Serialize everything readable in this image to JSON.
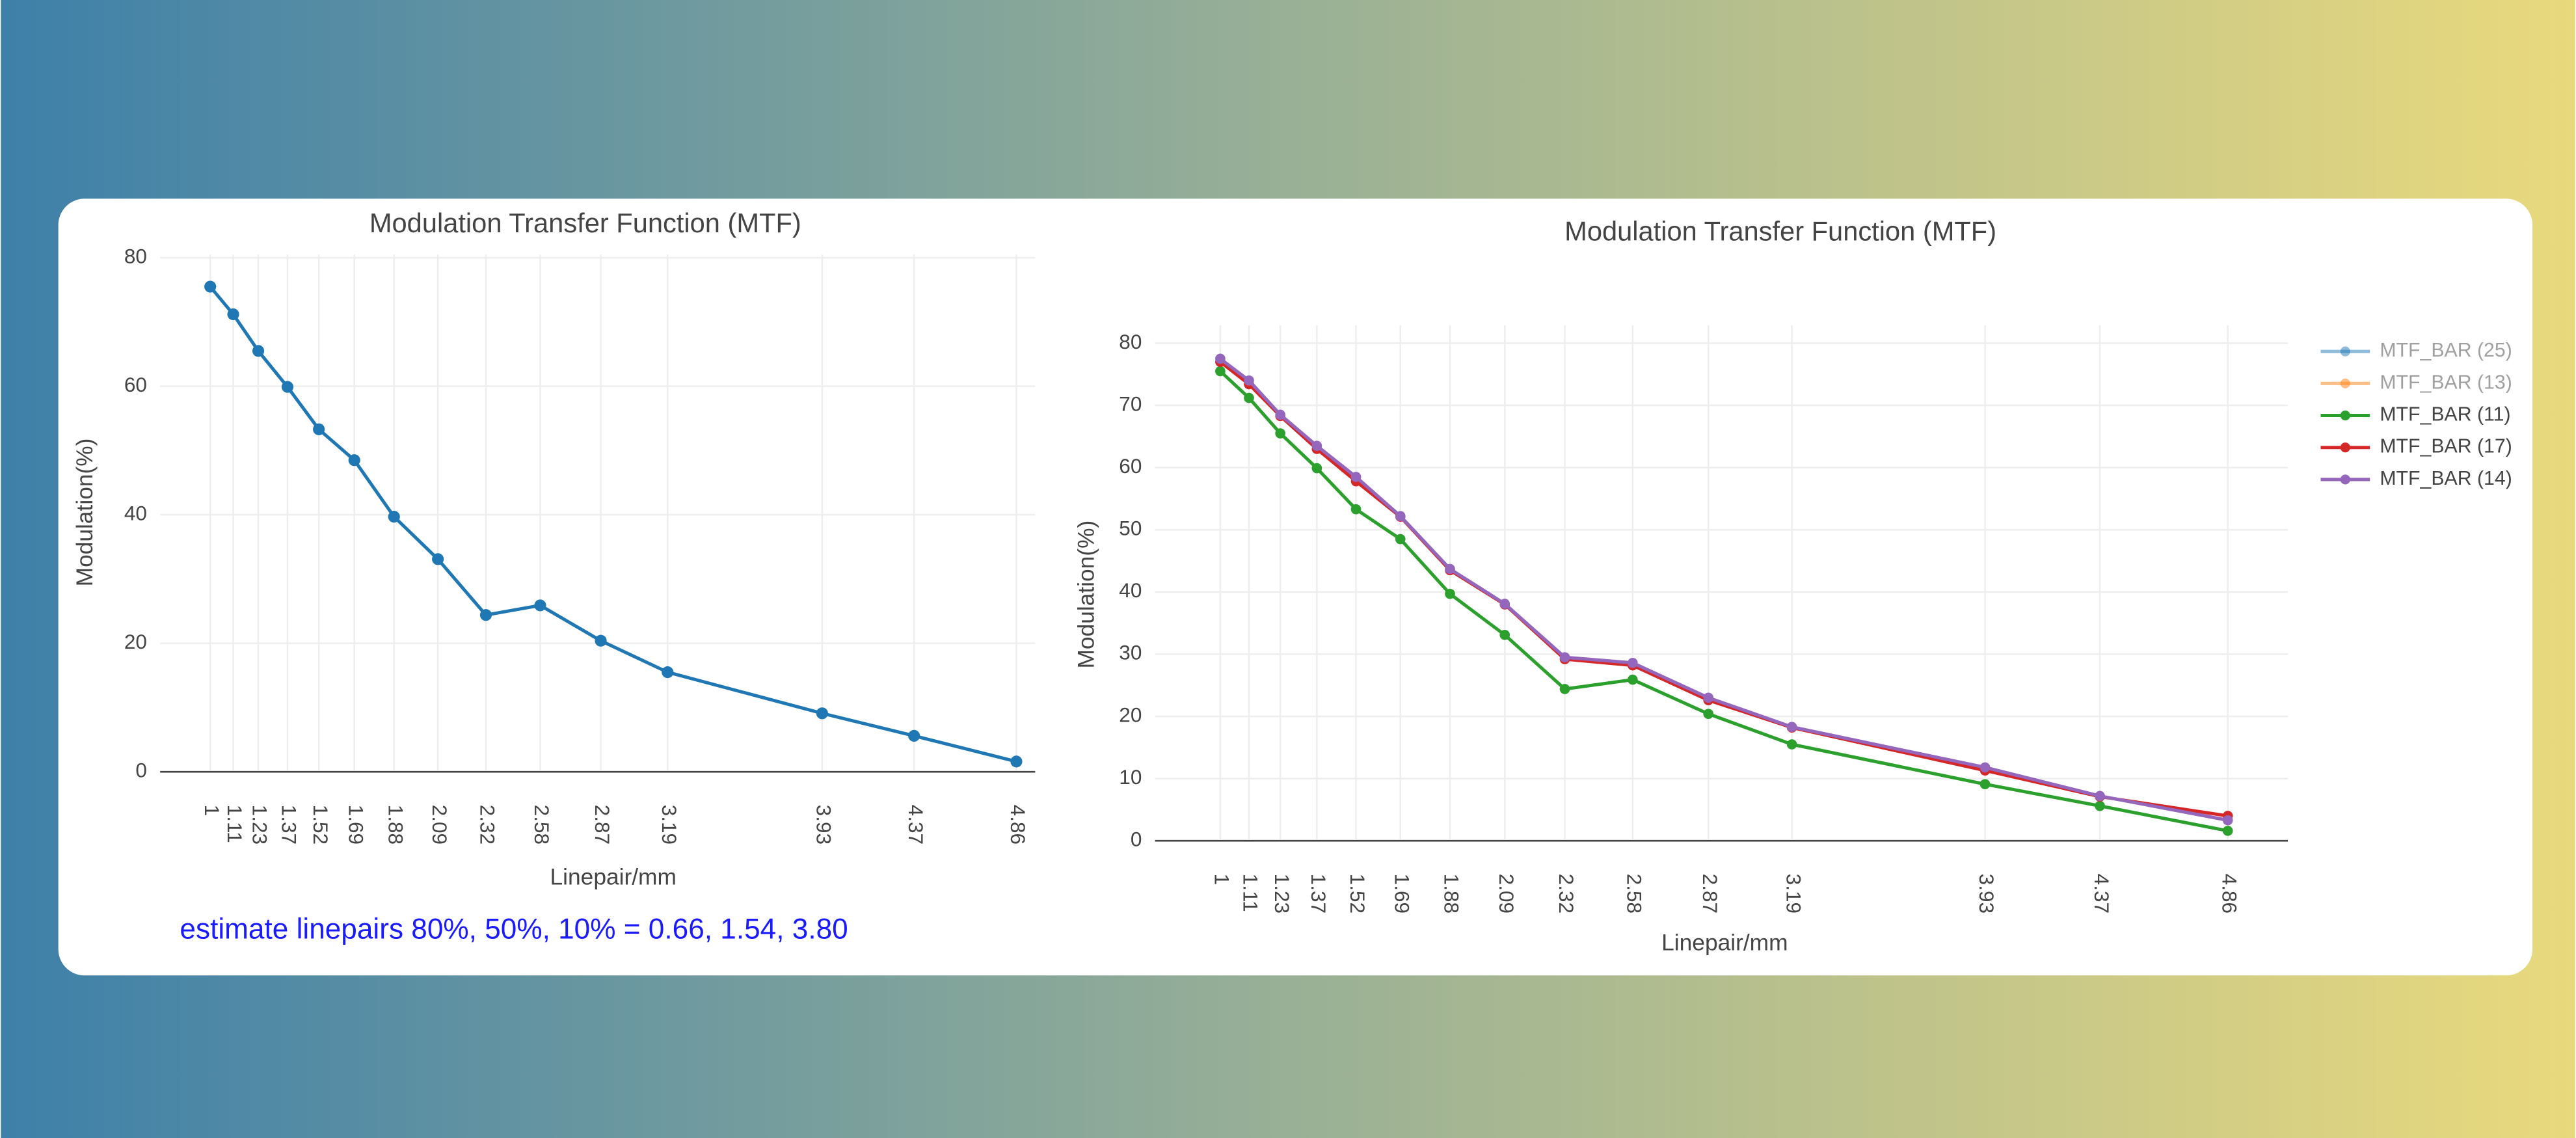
{
  "chart_data": [
    {
      "type": "line",
      "title": "Modulation Transfer Function (MTF)",
      "x_label": "Linepair/mm",
      "y_label": "Modulation(%)",
      "annotation": "estimate linepairs 80%, 50%, 10% = 0.66, 1.54, 3.80",
      "x": [
        1,
        1.11,
        1.23,
        1.37,
        1.52,
        1.69,
        1.88,
        2.09,
        2.32,
        2.58,
        2.87,
        3.19,
        3.93,
        4.37,
        4.86
      ],
      "values": [
        75.5,
        71.2,
        65.5,
        59.9,
        53.3,
        48.5,
        39.7,
        33.1,
        24.4,
        25.9,
        20.4,
        15.5,
        9.1,
        5.6,
        1.6
      ],
      "color": "#1f77b4",
      "xlim": [
        0.76,
        4.95
      ],
      "xticks": [
        1,
        1.11,
        1.23,
        1.37,
        1.52,
        1.69,
        1.88,
        2.09,
        2.32,
        2.58,
        2.87,
        3.19,
        3.93,
        4.37,
        4.86
      ],
      "ylim": [
        0,
        80.5
      ],
      "yticks": [
        0,
        20,
        40,
        60,
        80
      ],
      "grid": true
    },
    {
      "type": "line",
      "title": "Modulation Transfer Function (MTF)",
      "x_label": "Linepair/mm",
      "y_label": "Modulation(%)",
      "x": [
        1,
        1.11,
        1.23,
        1.37,
        1.52,
        1.69,
        1.88,
        2.09,
        2.32,
        2.58,
        2.87,
        3.19,
        3.93,
        4.37,
        4.86
      ],
      "series": [
        {
          "name": "MTF_BAR (25)",
          "color": "#1f77b4",
          "visible": false
        },
        {
          "name": "MTF_BAR (13)",
          "color": "#ff7f0e",
          "visible": false
        },
        {
          "name": "MTF_BAR (11)",
          "color": "#2ca02c",
          "values": [
            75.5,
            71.2,
            65.5,
            59.9,
            53.3,
            48.5,
            39.7,
            33.1,
            24.4,
            25.9,
            20.4,
            15.5,
            9.1,
            5.6,
            1.6
          ]
        },
        {
          "name": "MTF_BAR (17)",
          "color": "#d62728",
          "values": [
            77.0,
            73.4,
            68.3,
            63.0,
            57.8,
            52.1,
            43.5,
            38.0,
            29.2,
            28.2,
            22.6,
            18.2,
            11.3,
            7.1,
            4.0
          ]
        },
        {
          "name": "MTF_BAR (14)",
          "color": "#9467bd",
          "values": [
            77.5,
            74.0,
            68.5,
            63.5,
            58.5,
            52.2,
            43.7,
            38.1,
            29.5,
            28.6,
            23.0,
            18.3,
            11.8,
            7.2,
            3.3
          ]
        }
      ],
      "xlim": [
        0.75,
        5.09
      ],
      "xticks": [
        1,
        1.11,
        1.23,
        1.37,
        1.52,
        1.69,
        1.88,
        2.09,
        2.32,
        2.58,
        2.87,
        3.19,
        3.93,
        4.37,
        4.86
      ],
      "ylim": [
        0,
        82.9
      ],
      "yticks": [
        0,
        10,
        20,
        30,
        40,
        50,
        60,
        70,
        80
      ],
      "grid": true,
      "legend": "right"
    }
  ]
}
